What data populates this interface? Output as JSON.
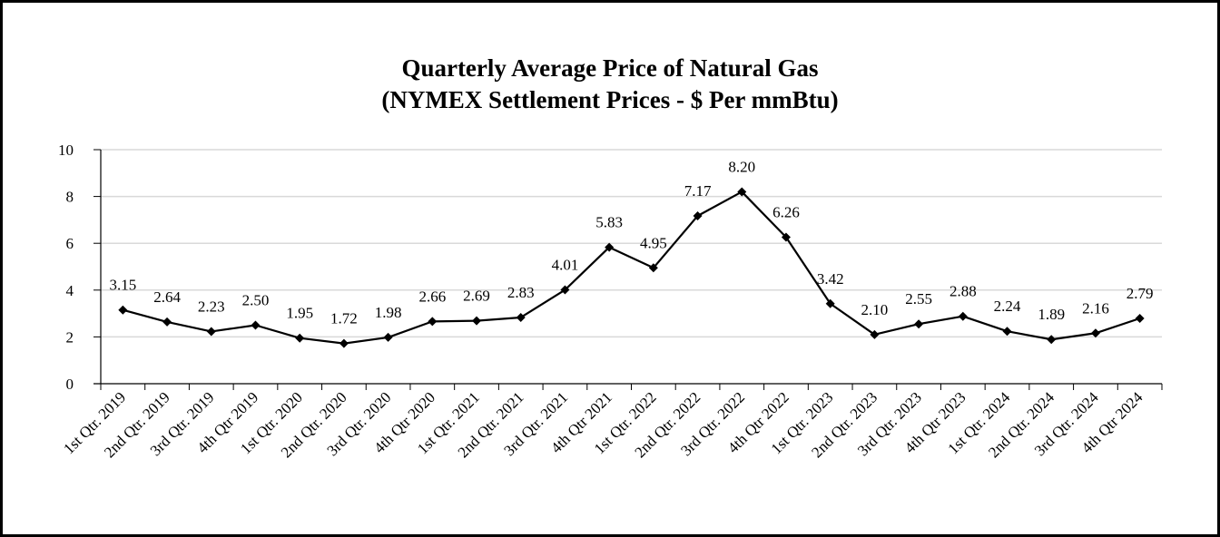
{
  "chart_data": {
    "type": "line",
    "title": "Quarterly Average Price of Natural Gas",
    "subtitle": "(NYMEX Settlement Prices - $ Per mmBtu)",
    "xlabel": "",
    "ylabel": "",
    "ylim": [
      0,
      10
    ],
    "yticks": [
      0,
      2,
      4,
      6,
      8,
      10
    ],
    "grid": true,
    "legend": "none",
    "colors": {
      "line": "#000000",
      "grid": "#d9d9d9",
      "axis": "#000000"
    },
    "categories": [
      "1st Qtr. 2019",
      "2nd Qtr. 2019",
      "3rd Qtr. 2019",
      "4th Qtr 2019",
      "1st Qtr. 2020",
      "2nd Qtr. 2020",
      "3rd Qtr. 2020",
      "4th Qtr 2020",
      "1st Qtr. 2021",
      "2nd Qtr. 2021",
      "3rd Qtr. 2021",
      "4th Qtr 2021",
      "1st Qtr. 2022",
      "2nd Qtr. 2022",
      "3rd Qtr. 2022",
      "4th Qtr 2022",
      "1st Qtr. 2023",
      "2nd Qtr. 2023",
      "3rd Qtr. 2023",
      "4th Qtr 2023",
      "1st Qtr. 2024",
      "2nd Qtr. 2024",
      "3rd Qtr. 2024",
      "4th Qtr 2024"
    ],
    "values": [
      3.15,
      2.64,
      2.23,
      2.5,
      1.95,
      1.72,
      1.98,
      2.66,
      2.69,
      2.83,
      4.01,
      5.83,
      4.95,
      7.17,
      8.2,
      6.26,
      3.42,
      2.1,
      2.55,
      2.88,
      2.24,
      1.89,
      2.16,
      2.79
    ],
    "labels": [
      "3.15",
      "2.64",
      "2.23",
      "2.50",
      "1.95",
      "1.72",
      "1.98",
      "2.66",
      "2.69",
      "2.83",
      "4.01",
      "5.83",
      "4.95",
      "7.17",
      "8.20",
      "6.26",
      "3.42",
      "2.10",
      "2.55",
      "2.88",
      "2.24",
      "1.89",
      "2.16",
      "2.79"
    ]
  }
}
